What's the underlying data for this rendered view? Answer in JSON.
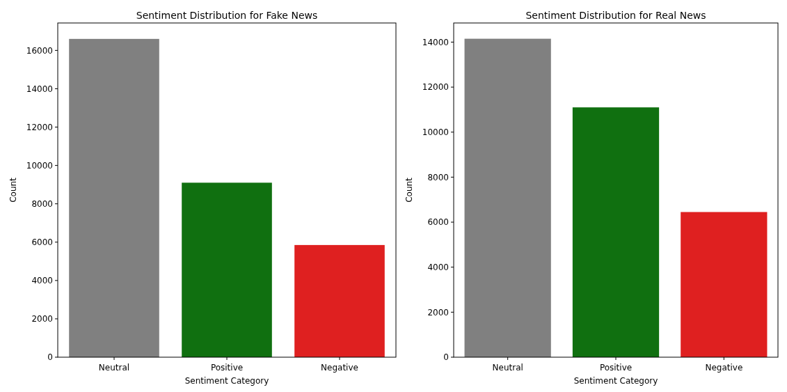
{
  "chart_data": [
    {
      "type": "bar",
      "title": "Sentiment Distribution for Fake News",
      "xlabel": "Sentiment Category",
      "ylabel": "Count",
      "categories": [
        "Neutral",
        "Positive",
        "Negative"
      ],
      "values": [
        16600,
        9100,
        5850
      ],
      "colors": [
        "#808080",
        "#107010",
        "#df2020"
      ],
      "ylim": [
        0,
        17430
      ],
      "yticks": [
        0,
        2000,
        4000,
        6000,
        8000,
        10000,
        12000,
        14000,
        16000
      ]
    },
    {
      "type": "bar",
      "title": "Sentiment Distribution for Real News",
      "xlabel": "Sentiment Category",
      "ylabel": "Count",
      "categories": [
        "Neutral",
        "Positive",
        "Negative"
      ],
      "values": [
        14150,
        11100,
        6450
      ],
      "colors": [
        "#808080",
        "#107010",
        "#df2020"
      ],
      "ylim": [
        0,
        14850
      ],
      "yticks": [
        0,
        2000,
        4000,
        6000,
        8000,
        10000,
        12000,
        14000
      ]
    }
  ]
}
